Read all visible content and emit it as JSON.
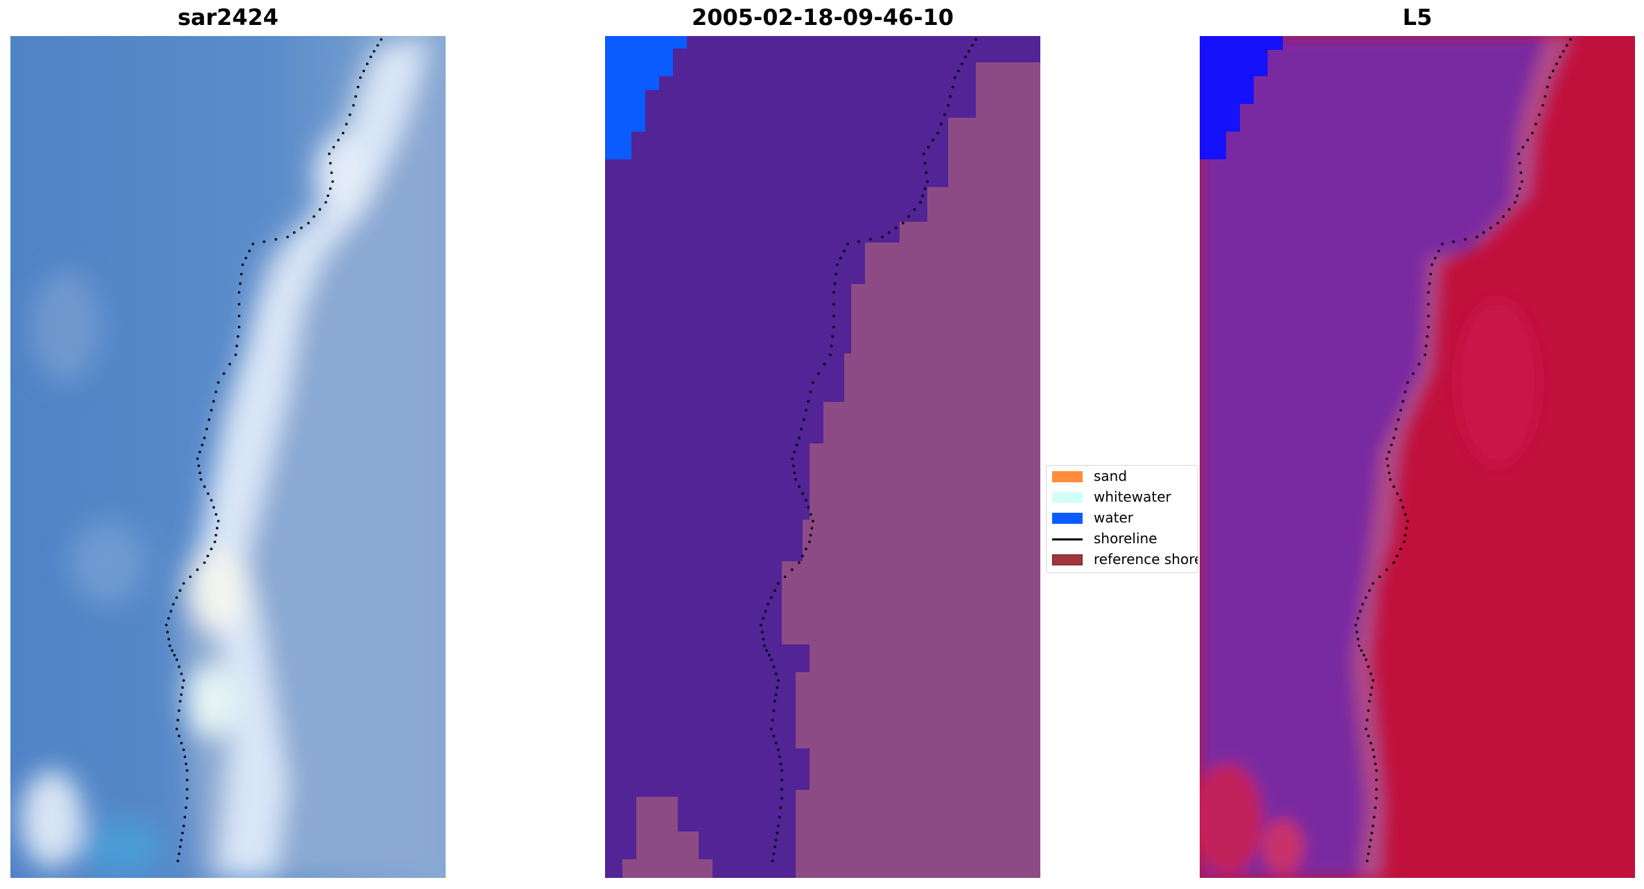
{
  "panels": [
    {
      "title": "sar2424"
    },
    {
      "title": "2005-02-18-09-46-10"
    },
    {
      "title": "L5"
    }
  ],
  "legend": {
    "items": [
      {
        "label": "sand",
        "color": "#ff8c3a",
        "kind": "box"
      },
      {
        "label": "whitewater",
        "color": "#d2fff8",
        "kind": "box"
      },
      {
        "label": "water",
        "color": "#0a5cff",
        "kind": "box"
      },
      {
        "label": "shoreline",
        "color": "#000000",
        "kind": "line"
      },
      {
        "label": "reference shoreline",
        "color": "#a0373a",
        "kind": "box"
      }
    ]
  },
  "colors": {
    "rgb_water": "#4d84c8",
    "rgb_surf": "#dce8f8",
    "class_water_body": "#522496",
    "class_land": "#a0508a",
    "class_water_corner": "#0a5cff",
    "index_water": "#7a2aa0",
    "index_land": "#c0103c",
    "index_corner": "#1010ff"
  }
}
